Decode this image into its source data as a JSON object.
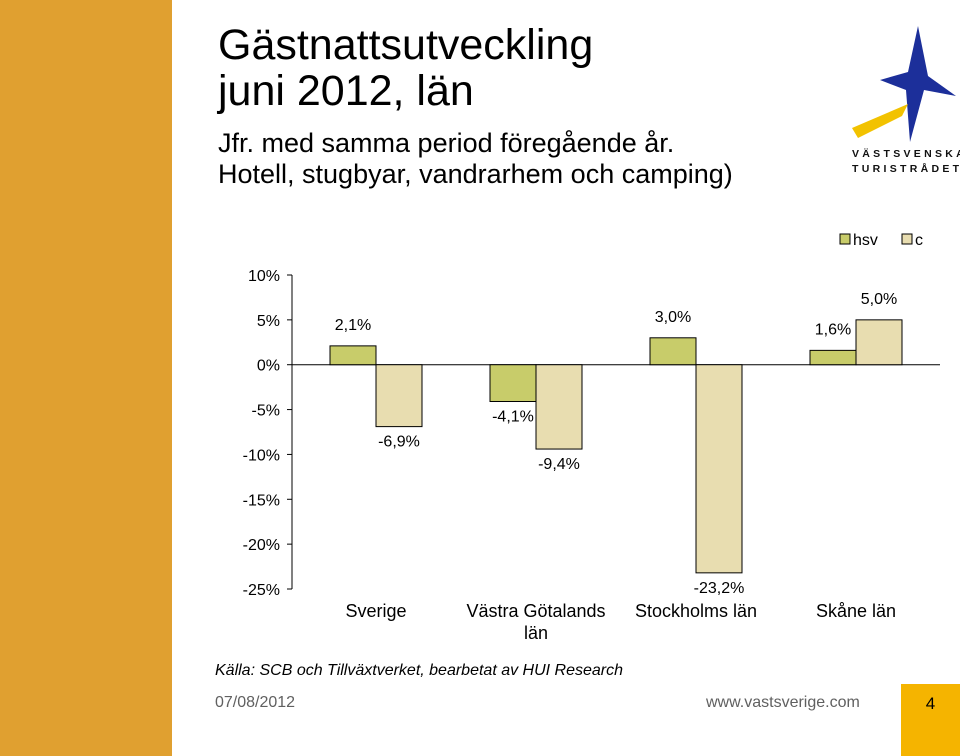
{
  "slide": {
    "title_line1": "Gästnattsutveckling",
    "title_line2": "juni 2012, län",
    "subtitle_line1": "Jfr. med samma period föregående år.",
    "subtitle_line2": "Hotell, stugbyar, vandrarhem och camping)",
    "logo_line1": "VÄSTSVENSKA",
    "logo_line2": "TURISTRÅDET",
    "source": "Källa: SCB och Tillväxtverket, bearbetat av HUI Research",
    "date": "07/08/2012",
    "url": "www.vastsverige.com",
    "page_number": "4"
  },
  "colors": {
    "side_band": "#e0a030",
    "page_box": "#f5b400",
    "series_hsv": "#c8cc6a",
    "series_c": "#e8ddb0",
    "logo_blue": "#1c2f9a",
    "logo_yellow": "#f2c200"
  },
  "chart_data": {
    "type": "bar",
    "categories": [
      "Sverige",
      "Västra Götalands län",
      "Stockholms län",
      "Skåne län"
    ],
    "category_labels": [
      [
        "Sverige"
      ],
      [
        "Västra Götalands",
        "län"
      ],
      [
        "Stockholms län"
      ],
      [
        "Skåne län"
      ]
    ],
    "series": [
      {
        "name": "hsv",
        "values": [
          2.1,
          -4.1,
          3.0,
          1.6
        ],
        "labels": [
          "2,1%",
          "-4,1%",
          "3,0%",
          "1,6%"
        ]
      },
      {
        "name": "c",
        "values": [
          -6.9,
          -9.4,
          -23.2,
          5.0
        ],
        "labels": [
          "-6,9%",
          "-9,4%",
          "-23,2%",
          "5,0%"
        ]
      }
    ],
    "y_ticks": [
      10,
      5,
      0,
      -5,
      -10,
      -15,
      -20,
      -25
    ],
    "y_tick_labels": [
      "10%",
      "5%",
      "0%",
      "-5%",
      "-10%",
      "-15%",
      "-20%",
      "-25%"
    ],
    "ylim": [
      -25,
      10
    ],
    "grid": false,
    "legend_position": "top-right",
    "title": "",
    "xlabel": "",
    "ylabel": ""
  }
}
